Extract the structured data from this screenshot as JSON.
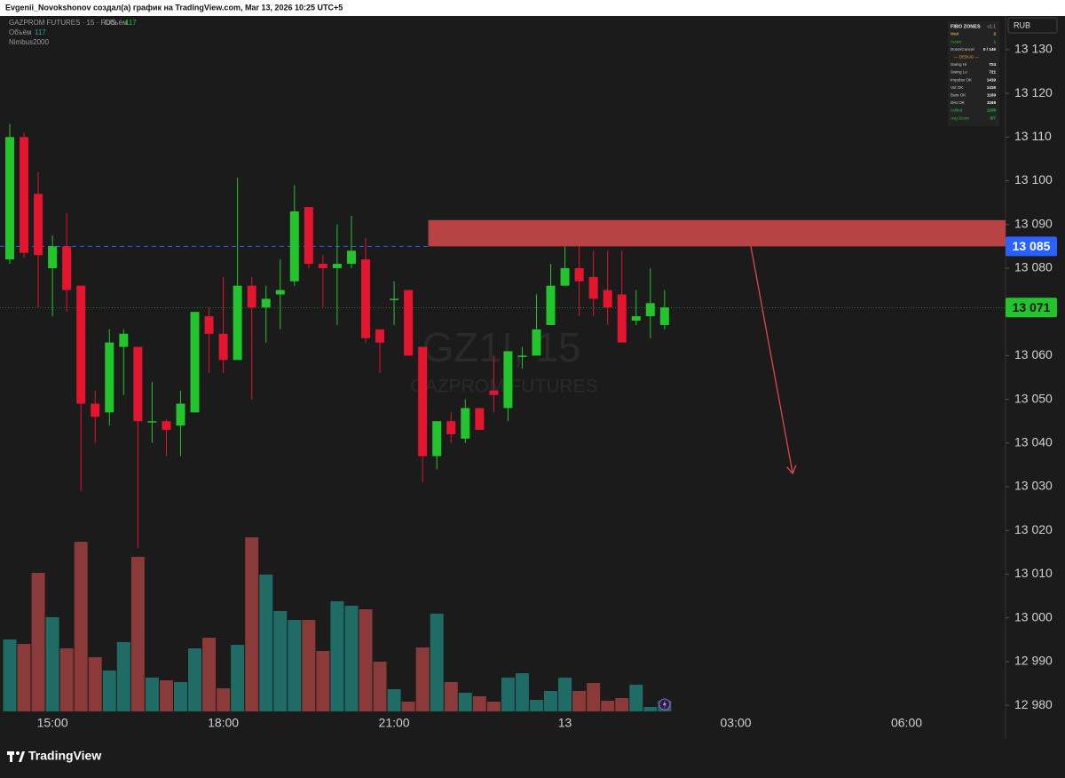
{
  "header": "Evgenii_Novokshonov создал(а) график на TradingView.com, Mar 13, 2026 10:25 UTC+5",
  "brand": "TradingView",
  "currency": "RUB",
  "legend": {
    "symbol": "GAZPROM FUTURES · 15 · RUS",
    "volume_label": "Объём",
    "indicator": "Nimbus2000"
  },
  "watermark": {
    "ticker": "GZ1!, 15",
    "name": "GAZPROM FUTURES"
  },
  "fibo_table": {
    "title": "FIBO ZONES",
    "version": "v1.1",
    "rows": [
      [
        "Wait",
        "2"
      ],
      [
        "Active",
        "1"
      ],
      [
        "Done/Cancel",
        "0 / 149"
      ],
      [
        "— DEBUG —",
        ""
      ],
      [
        "Swing Hi",
        "724"
      ],
      [
        "Swing Lo",
        "721"
      ],
      [
        "Impulse OK",
        "1419"
      ],
      [
        "Vol OK",
        "1419"
      ],
      [
        "Bars OK",
        "1169"
      ],
      [
        "Dist OK",
        "1169"
      ],
      [
        "Added",
        "1158"
      ],
      [
        "Avg Score",
        "5/7"
      ]
    ]
  },
  "chart_data": {
    "type": "candlestick",
    "categories": [
      null,
      null,
      null,
      "15:00",
      null,
      null,
      null,
      null,
      null,
      null,
      null,
      null,
      null,
      null,
      null,
      "18:00",
      null,
      null,
      null,
      null,
      null,
      null,
      null,
      null,
      null,
      null,
      null,
      "21:00",
      null,
      null,
      null,
      null,
      null,
      null,
      null,
      null,
      null,
      null,
      null,
      "13",
      null,
      null,
      null,
      null,
      null,
      null,
      null,
      null,
      null,
      null,
      null,
      "03:00",
      null,
      null,
      null,
      null,
      null,
      null,
      null,
      null,
      null,
      null,
      null,
      "06:00",
      null,
      null,
      null,
      null,
      null,
      null
    ],
    "open": [
      13082,
      13110,
      13097,
      13080,
      13085,
      13076,
      13049,
      13047,
      13062,
      13062,
      13045,
      13045,
      13044,
      13047,
      13069,
      13065,
      13059,
      13076,
      13071,
      13074,
      13077,
      13094,
      13081,
      13080,
      13081,
      13082,
      13066,
      13073,
      13075,
      13062,
      13037,
      13045,
      13041,
      13048,
      13052,
      13048,
      13060,
      13060,
      13067,
      13076,
      13080,
      13078,
      13075,
      13074,
      13068,
      13069,
      13067,
      null,
      null,
      null,
      null,
      null,
      null,
      null,
      null,
      null,
      null,
      null,
      null,
      null,
      null,
      null,
      null,
      null,
      null,
      null,
      null,
      null,
      null,
      null
    ],
    "high": [
      13113,
      13111,
      13102,
      13087.5,
      13092.6,
      13076,
      13052,
      13066,
      13066,
      13062,
      13054,
      13045.5,
      13052,
      13070,
      13071,
      13078,
      13100.7,
      13078,
      13076,
      13082,
      13099,
      13094,
      13083,
      13090,
      13092,
      13087,
      13066,
      13077,
      13075,
      13062,
      13045,
      13047,
      13050,
      13048,
      13060,
      13061,
      13062,
      13074,
      13081,
      13085,
      13085,
      13084,
      13084,
      13084,
      13075,
      13080,
      13075,
      null,
      null,
      null,
      null,
      null,
      null,
      null,
      null,
      null,
      null,
      null,
      null,
      null,
      null,
      null,
      null,
      null,
      null,
      null,
      null,
      null,
      null,
      null
    ],
    "low": [
      13081,
      13082.4,
      13071,
      13069,
      13070,
      13029,
      13040,
      13044,
      13051,
      13016,
      13040,
      13037,
      13037,
      13047,
      13056,
      13056,
      13059,
      13050,
      13063,
      13066,
      13076,
      13080,
      13071,
      13067,
      13080,
      13063,
      13056,
      13067,
      13060,
      13031,
      13034,
      13040,
      13040,
      13043,
      13047,
      13045,
      13057,
      13060,
      13067,
      13076,
      13069,
      13069,
      13067,
      13063,
      13067,
      13064,
      13066,
      null,
      null,
      null,
      null,
      null,
      null,
      null,
      null,
      null,
      null,
      null,
      null,
      null,
      null,
      null,
      null,
      null,
      null,
      null,
      null,
      null,
      null,
      null
    ],
    "close": [
      13110,
      13083.5,
      13083,
      13085,
      13075,
      13049,
      13046,
      13063,
      13065,
      13045,
      13045,
      13043,
      13049,
      13070,
      13065,
      13059,
      13076,
      13071,
      13073,
      13075,
      13093,
      13081,
      13080,
      13081,
      13084,
      13064,
      13063,
      13073,
      13060,
      13037,
      13045,
      13042,
      13048,
      13043,
      13051,
      13061,
      13060,
      13066,
      13076,
      13080,
      13077,
      13073,
      13071,
      13063,
      13069,
      13072,
      13071,
      null,
      null,
      null,
      null,
      null,
      null,
      null,
      null,
      null,
      null,
      null,
      null,
      null,
      null,
      null,
      null,
      null,
      null,
      null,
      null,
      null,
      null,
      null
    ],
    "volume": [
      790,
      741,
      1521,
      1034,
      692,
      1862,
      595,
      449,
      761,
      1697,
      371,
      341,
      322,
      692,
      809,
      254,
      731,
      1911,
      1502,
      1102,
      1004,
      1004,
      663,
      1209,
      1160,
      1121,
      546,
      244,
      107,
      702,
      1073,
      322,
      205,
      166,
      107,
      371,
      419,
      127,
      224,
      371,
      224,
      312,
      117,
      146,
      293,
      49,
      117,
      null,
      null,
      null,
      null,
      null,
      null,
      null,
      null,
      null,
      null,
      null,
      null,
      null,
      null,
      null,
      null,
      null,
      null,
      null,
      null,
      null,
      null,
      null
    ],
    "up_color": "#22c52c",
    "down_color": "#e3152f",
    "volume_up_color": "#1f6b66",
    "volume_down_color": "#8a3a38",
    "ylim": [
      12972.3,
      13137.7
    ],
    "yticks": [
      {
        "value": 13130,
        "label": "13 130"
      },
      {
        "value": 13120,
        "label": "13 120"
      },
      {
        "value": 13110,
        "label": "13 110"
      },
      {
        "value": 13100,
        "label": "13 100"
      },
      {
        "value": 13090,
        "label": "13 090"
      },
      {
        "value": 13080,
        "label": "13 080"
      },
      {
        "value": 13070,
        "label": "13 070"
      },
      {
        "value": 13060,
        "label": "13 060"
      },
      {
        "value": 13050,
        "label": "13 050"
      },
      {
        "value": 13040,
        "label": "13 040"
      },
      {
        "value": 13030,
        "label": "13 030"
      },
      {
        "value": 13020,
        "label": "13 020"
      },
      {
        "value": 13010,
        "label": "13 010"
      },
      {
        "value": 13000,
        "label": "13 000"
      },
      {
        "value": 12990,
        "label": "12 990"
      },
      {
        "value": 12980,
        "label": "12 980"
      }
    ],
    "level": {
      "value": 13085,
      "label": "13 085",
      "color": "#2962ff"
    },
    "last_price": {
      "value": 13071,
      "label": "13 071",
      "color": "#22c52c"
    },
    "zone": {
      "top": 13091,
      "bottom": 13085,
      "color": "#c94848"
    },
    "arrow": {
      "from": 13085,
      "to": 13033,
      "color": "#e04848"
    }
  }
}
